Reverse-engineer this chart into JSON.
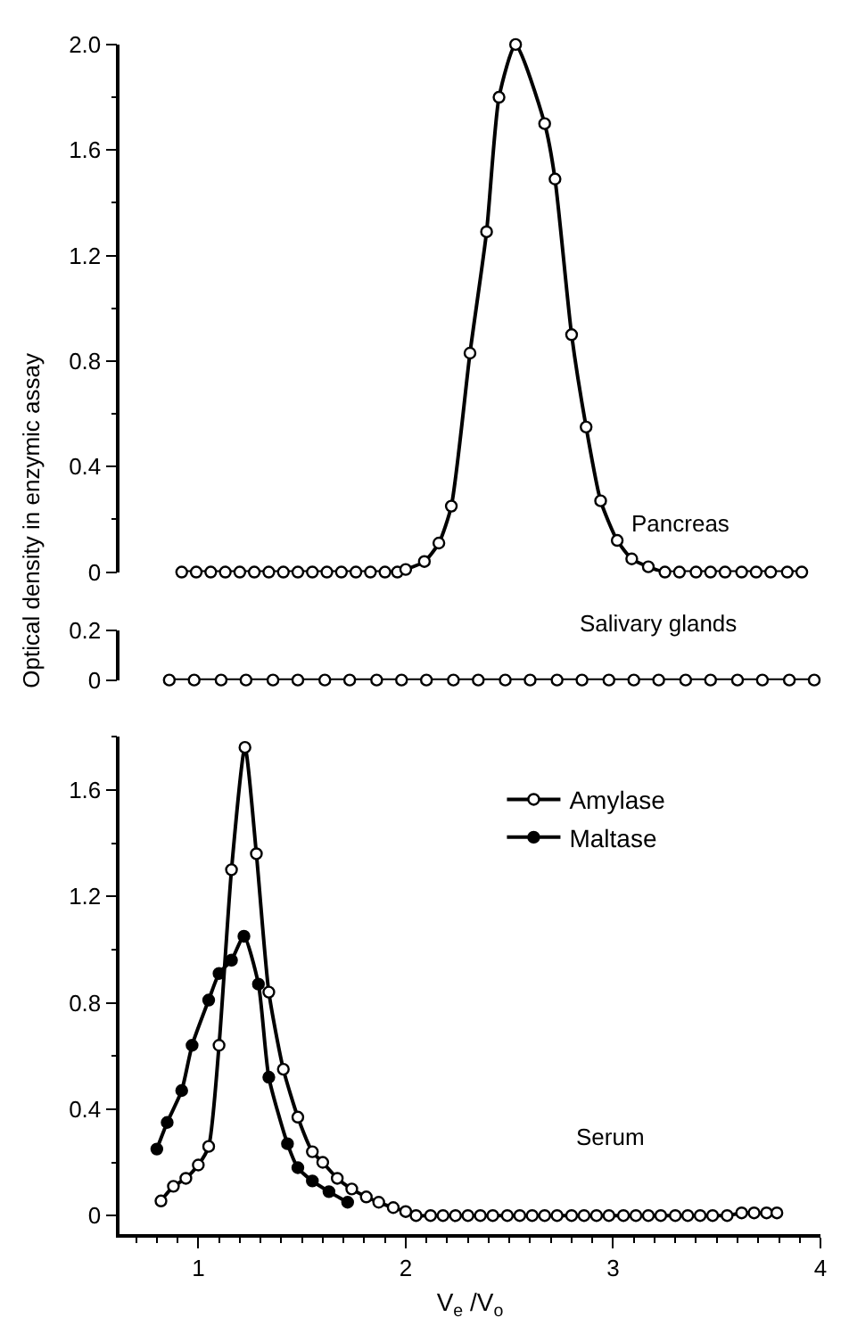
{
  "chart_data": [
    {
      "type": "line",
      "ylabel": "Optical density in enzymic assay",
      "xlim": [
        0.62,
        4.0
      ],
      "ylim": [
        0,
        2.0
      ],
      "tick_labels": "y",
      "line_style": "solid",
      "yticks": [
        0,
        {
          "value": 0.2,
          "label": null
        },
        0.4,
        {
          "value": 0.6,
          "label": null
        },
        0.8,
        {
          "value": 1.0,
          "label": null
        },
        1.2,
        {
          "value": 1.4,
          "label": null
        },
        1.6,
        {
          "value": 1.8,
          "label": null
        },
        {
          "value": 2.0,
          "label": "2.0"
        }
      ],
      "series": [
        {
          "name": "Pancreas",
          "color": "#000000",
          "marker": "circle-open",
          "x": [
            0.92,
            0.99,
            1.06,
            1.13,
            1.2,
            1.27,
            1.34,
            1.41,
            1.48,
            1.55,
            1.62,
            1.69,
            1.76,
            1.83,
            1.9,
            1.96,
            2.0,
            2.09,
            2.16,
            2.22,
            2.31,
            2.39,
            2.45,
            2.53,
            2.67,
            2.72,
            2.8,
            2.87,
            2.94,
            3.02,
            3.09,
            3.17,
            3.25,
            3.32,
            3.4,
            3.47,
            3.54,
            3.62,
            3.69,
            3.76,
            3.84,
            3.91
          ],
          "values": [
            0,
            0,
            0,
            0,
            0,
            0,
            0,
            0,
            0,
            0,
            0,
            0,
            0,
            0,
            0,
            0,
            0.01,
            0.04,
            0.11,
            0.25,
            0.83,
            1.29,
            1.8,
            2.0,
            1.7,
            1.49,
            0.9,
            0.55,
            0.27,
            0.12,
            0.05,
            0.02,
            0,
            0,
            0,
            0,
            0,
            0,
            0,
            0,
            0,
            0
          ]
        }
      ]
    },
    {
      "type": "line",
      "xlim": [
        0.62,
        4.0
      ],
      "ylim": [
        0,
        0.2
      ],
      "tick_labels": "y",
      "line_style": "solid",
      "yticks": [
        0,
        0.2
      ],
      "series": [
        {
          "name": "Salivary glands",
          "color": "#000000",
          "marker": "circle-open",
          "x": [
            0.86,
            0.98,
            1.11,
            1.23,
            1.36,
            1.48,
            1.61,
            1.73,
            1.86,
            1.98,
            2.1,
            2.23,
            2.35,
            2.48,
            2.6,
            2.73,
            2.85,
            2.98,
            3.1,
            3.22,
            3.35,
            3.47,
            3.6,
            3.72,
            3.85,
            3.97
          ],
          "values": [
            0,
            0,
            0,
            0,
            0,
            0,
            0,
            0,
            0,
            0,
            0,
            0,
            0,
            0,
            0,
            0,
            0,
            0,
            0,
            0,
            0,
            0,
            0,
            0,
            0,
            0
          ]
        }
      ]
    },
    {
      "type": "line",
      "xlabel": "V$_{e}$ /V$_{o}$",
      "xlim": [
        0.62,
        4.0
      ],
      "ylim": [
        -0.07,
        1.8
      ],
      "line_style": "solid",
      "legend": "top",
      "annotations": [
        "Serum"
      ],
      "xticks": [
        {
          "value": 0.7,
          "label": null
        },
        {
          "value": 0.8,
          "label": null
        },
        {
          "value": 0.9,
          "label": null
        },
        1,
        {
          "value": 1.1,
          "label": null
        },
        {
          "value": 1.2,
          "label": null
        },
        {
          "value": 1.3,
          "label": null
        },
        {
          "value": 1.4,
          "label": null
        },
        {
          "value": 1.5,
          "label": null
        },
        {
          "value": 1.6,
          "label": null
        },
        {
          "value": 1.7,
          "label": null
        },
        {
          "value": 1.8,
          "label": null
        },
        {
          "value": 1.9,
          "label": null
        },
        2,
        {
          "value": 2.1,
          "label": null
        },
        {
          "value": 2.2,
          "label": null
        },
        {
          "value": 2.3,
          "label": null
        },
        {
          "value": 2.4,
          "label": null
        },
        {
          "value": 2.5,
          "label": null
        },
        {
          "value": 2.6,
          "label": null
        },
        {
          "value": 2.7,
          "label": null
        },
        {
          "value": 2.8,
          "label": null
        },
        {
          "value": 2.9,
          "label": null
        },
        3,
        {
          "value": 3.1,
          "label": null
        },
        {
          "value": 3.2,
          "label": null
        },
        {
          "value": 3.3,
          "label": null
        },
        {
          "value": 3.4,
          "label": null
        },
        {
          "value": 3.5,
          "label": null
        },
        {
          "value": 3.6,
          "label": null
        },
        {
          "value": 3.7,
          "label": null
        },
        {
          "value": 3.8,
          "label": null
        },
        {
          "value": 3.9,
          "label": null
        },
        4
      ],
      "yticks": [
        0,
        {
          "value": 0.2,
          "label": null
        },
        0.4,
        {
          "value": 0.6,
          "label": null
        },
        0.8,
        {
          "value": 1.0,
          "label": null
        },
        1.2,
        {
          "value": 1.4,
          "label": null
        },
        1.6,
        {
          "value": 1.8,
          "label": null
        }
      ],
      "series": [
        {
          "name": "Amylase",
          "color": "#000000",
          "marker": "circle-open",
          "x": [
            0.82,
            0.88,
            0.94,
            1.0,
            1.05,
            1.1,
            1.16,
            1.225,
            1.28,
            1.34,
            1.41,
            1.48,
            1.55,
            1.6,
            1.67,
            1.74,
            1.81,
            1.87,
            1.94,
            2.0,
            2.05,
            2.12,
            2.18,
            2.24,
            2.3,
            2.36,
            2.42,
            2.49,
            2.55,
            2.61,
            2.67,
            2.73,
            2.8,
            2.86,
            2.92,
            2.98,
            3.05,
            3.11,
            3.17,
            3.23,
            3.3,
            3.36,
            3.42,
            3.48,
            3.55,
            3.62,
            3.68,
            3.74,
            3.79
          ],
          "values": [
            0.055,
            0.11,
            0.14,
            0.19,
            0.26,
            0.64,
            1.3,
            1.76,
            1.36,
            0.84,
            0.55,
            0.37,
            0.24,
            0.2,
            0.14,
            0.1,
            0.07,
            0.05,
            0.03,
            0.015,
            0,
            0,
            0,
            0,
            0,
            0,
            0,
            0,
            0,
            0,
            0,
            0,
            0,
            0,
            0,
            0,
            0,
            0,
            0,
            0,
            0,
            0,
            0,
            0,
            0,
            0.01,
            0.01,
            0.01,
            0.01
          ]
        },
        {
          "name": "Maltase",
          "color": "#000000",
          "marker": "circle",
          "x": [
            0.8,
            0.85,
            0.92,
            0.97,
            1.05,
            1.1,
            1.16,
            1.22,
            1.29,
            1.34,
            1.43,
            1.48,
            1.55,
            1.63,
            1.72
          ],
          "values": [
            0.25,
            0.35,
            0.47,
            0.64,
            0.81,
            0.91,
            0.96,
            1.05,
            0.87,
            0.52,
            0.27,
            0.18,
            0.13,
            0.09,
            0.05
          ]
        }
      ]
    }
  ]
}
